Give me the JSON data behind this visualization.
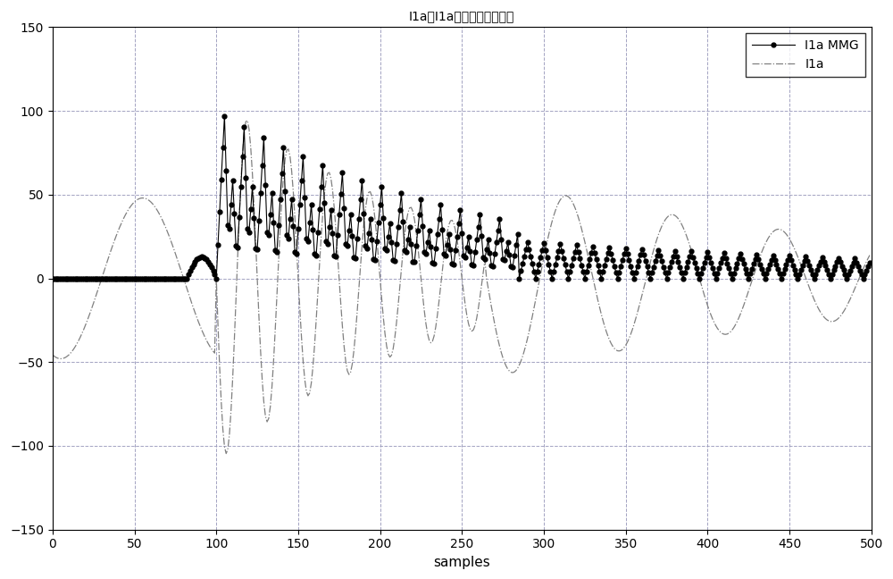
{
  "title": "I1a和I1a的形态梯度的波形",
  "xlabel": "samples",
  "xlim": [
    0,
    500
  ],
  "ylim": [
    -150,
    150
  ],
  "yticks": [
    -150,
    -100,
    -50,
    0,
    50,
    100,
    150
  ],
  "xticks": [
    0,
    50,
    100,
    150,
    200,
    250,
    300,
    350,
    400,
    450,
    500
  ],
  "legend_labels": [
    "I1a MMG",
    "I1a"
  ],
  "background_color": "#ffffff",
  "figsize": [
    10.0,
    6.48
  ],
  "dpi": 100
}
